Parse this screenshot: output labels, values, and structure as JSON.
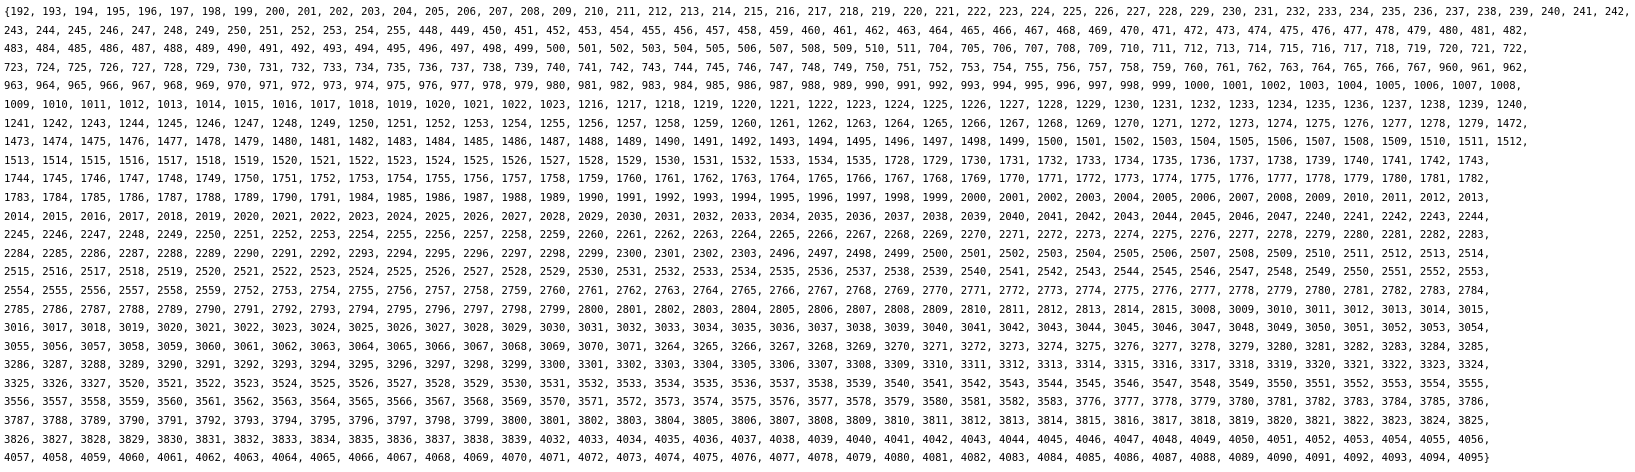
{
  "output": {
    "lines": [
      "{192, 193, 194, 195, 196, 197, 198, 199, 200, 201, 202, 203, 204, 205, 206, 207, 208, 209, 210, 211, 212, 213, 214, 215, 216, 217, 218, 219, 220, 221, 222, 223, 224, 225, 226, 227, 228, 229, 230, 231, 232, 233, 234, 235, 236, 237, 238, 239, 240, 241, 242,",
      "243, 244, 245, 246, 247, 248, 249, 250, 251, 252, 253, 254, 255, 448, 449, 450, 451, 452, 453, 454, 455, 456, 457, 458, 459, 460, 461, 462, 463, 464, 465, 466, 467, 468, 469, 470, 471, 472, 473, 474, 475, 476, 477, 478, 479, 480, 481, 482,",
      "483, 484, 485, 486, 487, 488, 489, 490, 491, 492, 493, 494, 495, 496, 497, 498, 499, 500, 501, 502, 503, 504, 505, 506, 507, 508, 509, 510, 511, 704, 705, 706, 707, 708, 709, 710, 711, 712, 713, 714, 715, 716, 717, 718, 719, 720, 721, 722,",
      "723, 724, 725, 726, 727, 728, 729, 730, 731, 732, 733, 734, 735, 736, 737, 738, 739, 740, 741, 742, 743, 744, 745, 746, 747, 748, 749, 750, 751, 752, 753, 754, 755, 756, 757, 758, 759, 760, 761, 762, 763, 764, 765, 766, 767, 960, 961, 962,",
      "963, 964, 965, 966, 967, 968, 969, 970, 971, 972, 973, 974, 975, 976, 977, 978, 979, 980, 981, 982, 983, 984, 985, 986, 987, 988, 989, 990, 991, 992, 993, 994, 995, 996, 997, 998, 999, 1000, 1001, 1002, 1003, 1004, 1005, 1006, 1007, 1008,",
      "1009, 1010, 1011, 1012, 1013, 1014, 1015, 1016, 1017, 1018, 1019, 1020, 1021, 1022, 1023, 1216, 1217, 1218, 1219, 1220, 1221, 1222, 1223, 1224, 1225, 1226, 1227, 1228, 1229, 1230, 1231, 1232, 1233, 1234, 1235, 1236, 1237, 1238, 1239, 1240,",
      "1241, 1242, 1243, 1244, 1245, 1246, 1247, 1248, 1249, 1250, 1251, 1252, 1253, 1254, 1255, 1256, 1257, 1258, 1259, 1260, 1261, 1262, 1263, 1264, 1265, 1266, 1267, 1268, 1269, 1270, 1271, 1272, 1273, 1274, 1275, 1276, 1277, 1278, 1279, 1472,",
      "1473, 1474, 1475, 1476, 1477, 1478, 1479, 1480, 1481, 1482, 1483, 1484, 1485, 1486, 1487, 1488, 1489, 1490, 1491, 1492, 1493, 1494, 1495, 1496, 1497, 1498, 1499, 1500, 1501, 1502, 1503, 1504, 1505, 1506, 1507, 1508, 1509, 1510, 1511, 1512,",
      "1513, 1514, 1515, 1516, 1517, 1518, 1519, 1520, 1521, 1522, 1523, 1524, 1525, 1526, 1527, 1528, 1529, 1530, 1531, 1532, 1533, 1534, 1535, 1728, 1729, 1730, 1731, 1732, 1733, 1734, 1735, 1736, 1737, 1738, 1739, 1740, 1741, 1742, 1743,",
      "1744, 1745, 1746, 1747, 1748, 1749, 1750, 1751, 1752, 1753, 1754, 1755, 1756, 1757, 1758, 1759, 1760, 1761, 1762, 1763, 1764, 1765, 1766, 1767, 1768, 1769, 1770, 1771, 1772, 1773, 1774, 1775, 1776, 1777, 1778, 1779, 1780, 1781, 1782,",
      "1783, 1784, 1785, 1786, 1787, 1788, 1789, 1790, 1791, 1984, 1985, 1986, 1987, 1988, 1989, 1990, 1991, 1992, 1993, 1994, 1995, 1996, 1997, 1998, 1999, 2000, 2001, 2002, 2003, 2004, 2005, 2006, 2007, 2008, 2009, 2010, 2011, 2012, 2013,",
      "2014, 2015, 2016, 2017, 2018, 2019, 2020, 2021, 2022, 2023, 2024, 2025, 2026, 2027, 2028, 2029, 2030, 2031, 2032, 2033, 2034, 2035, 2036, 2037, 2038, 2039, 2040, 2041, 2042, 2043, 2044, 2045, 2046, 2047, 2240, 2241, 2242, 2243, 2244,",
      "2245, 2246, 2247, 2248, 2249, 2250, 2251, 2252, 2253, 2254, 2255, 2256, 2257, 2258, 2259, 2260, 2261, 2262, 2263, 2264, 2265, 2266, 2267, 2268, 2269, 2270, 2271, 2272, 2273, 2274, 2275, 2276, 2277, 2278, 2279, 2280, 2281, 2282, 2283,",
      "2284, 2285, 2286, 2287, 2288, 2289, 2290, 2291, 2292, 2293, 2294, 2295, 2296, 2297, 2298, 2299, 2300, 2301, 2302, 2303, 2496, 2497, 2498, 2499, 2500, 2501, 2502, 2503, 2504, 2505, 2506, 2507, 2508, 2509, 2510, 2511, 2512, 2513, 2514,",
      "2515, 2516, 2517, 2518, 2519, 2520, 2521, 2522, 2523, 2524, 2525, 2526, 2527, 2528, 2529, 2530, 2531, 2532, 2533, 2534, 2535, 2536, 2537, 2538, 2539, 2540, 2541, 2542, 2543, 2544, 2545, 2546, 2547, 2548, 2549, 2550, 2551, 2552, 2553,",
      "2554, 2555, 2556, 2557, 2558, 2559, 2752, 2753, 2754, 2755, 2756, 2757, 2758, 2759, 2760, 2761, 2762, 2763, 2764, 2765, 2766, 2767, 2768, 2769, 2770, 2771, 2772, 2773, 2774, 2775, 2776, 2777, 2778, 2779, 2780, 2781, 2782, 2783, 2784,",
      "2785, 2786, 2787, 2788, 2789, 2790, 2791, 2792, 2793, 2794, 2795, 2796, 2797, 2798, 2799, 2800, 2801, 2802, 2803, 2804, 2805, 2806, 2807, 2808, 2809, 2810, 2811, 2812, 2813, 2814, 2815, 3008, 3009, 3010, 3011, 3012, 3013, 3014, 3015,",
      "3016, 3017, 3018, 3019, 3020, 3021, 3022, 3023, 3024, 3025, 3026, 3027, 3028, 3029, 3030, 3031, 3032, 3033, 3034, 3035, 3036, 3037, 3038, 3039, 3040, 3041, 3042, 3043, 3044, 3045, 3046, 3047, 3048, 3049, 3050, 3051, 3052, 3053, 3054,",
      "3055, 3056, 3057, 3058, 3059, 3060, 3061, 3062, 3063, 3064, 3065, 3066, 3067, 3068, 3069, 3070, 3071, 3264, 3265, 3266, 3267, 3268, 3269, 3270, 3271, 3272, 3273, 3274, 3275, 3276, 3277, 3278, 3279, 3280, 3281, 3282, 3283, 3284, 3285,",
      "3286, 3287, 3288, 3289, 3290, 3291, 3292, 3293, 3294, 3295, 3296, 3297, 3298, 3299, 3300, 3301, 3302, 3303, 3304, 3305, 3306, 3307, 3308, 3309, 3310, 3311, 3312, 3313, 3314, 3315, 3316, 3317, 3318, 3319, 3320, 3321, 3322, 3323, 3324,",
      "3325, 3326, 3327, 3520, 3521, 3522, 3523, 3524, 3525, 3526, 3527, 3528, 3529, 3530, 3531, 3532, 3533, 3534, 3535, 3536, 3537, 3538, 3539, 3540, 3541, 3542, 3543, 3544, 3545, 3546, 3547, 3548, 3549, 3550, 3551, 3552, 3553, 3554, 3555,",
      "3556, 3557, 3558, 3559, 3560, 3561, 3562, 3563, 3564, 3565, 3566, 3567, 3568, 3569, 3570, 3571, 3572, 3573, 3574, 3575, 3576, 3577, 3578, 3579, 3580, 3581, 3582, 3583, 3776, 3777, 3778, 3779, 3780, 3781, 3782, 3783, 3784, 3785, 3786,",
      "3787, 3788, 3789, 3790, 3791, 3792, 3793, 3794, 3795, 3796, 3797, 3798, 3799, 3800, 3801, 3802, 3803, 3804, 3805, 3806, 3807, 3808, 3809, 3810, 3811, 3812, 3813, 3814, 3815, 3816, 3817, 3818, 3819, 3820, 3821, 3822, 3823, 3824, 3825,",
      "3826, 3827, 3828, 3829, 3830, 3831, 3832, 3833, 3834, 3835, 3836, 3837, 3838, 3839, 4032, 4033, 4034, 4035, 4036, 4037, 4038, 4039, 4040, 4041, 4042, 4043, 4044, 4045, 4046, 4047, 4048, 4049, 4050, 4051, 4052, 4053, 4054, 4055, 4056,",
      "4057, 4058, 4059, 4060, 4061, 4062, 4063, 4064, 4065, 4066, 4067, 4068, 4069, 4070, 4071, 4072, 4073, 4074, 4075, 4076, 4077, 4078, 4079, 4080, 4081, 4082, 4083, 4084, 4085, 4086, 4087, 4088, 4089, 4090, 4091, 4092, 4093, 4094, 4095}"
    ]
  }
}
